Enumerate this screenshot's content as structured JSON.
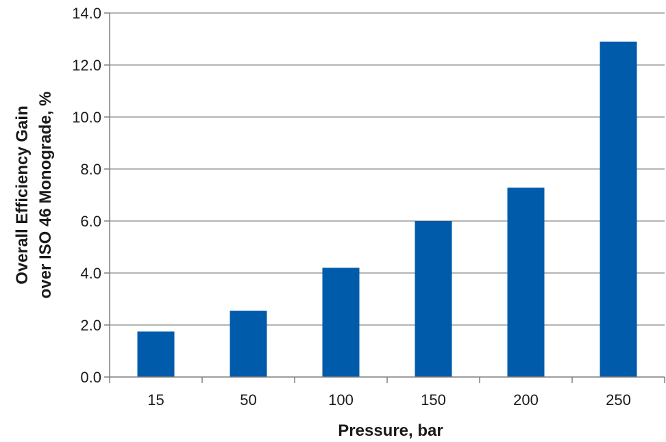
{
  "chart_data": {
    "type": "bar",
    "title": "",
    "xlabel": "Pressure, bar",
    "ylabel_lines": [
      "Overall Efficiency Gain",
      "over ISO 46 Monograde, %"
    ],
    "categories": [
      "15",
      "50",
      "100",
      "150",
      "200",
      "250"
    ],
    "values": [
      1.75,
      2.55,
      4.2,
      6.0,
      7.28,
      12.9
    ],
    "ylim": [
      0,
      14
    ],
    "yticks": [
      0,
      2,
      4,
      6,
      8,
      10,
      12,
      14
    ],
    "ytick_labels": [
      "0.0",
      "2.0",
      "4.0",
      "6.0",
      "8.0",
      "10.0",
      "12.0",
      "14.0"
    ],
    "grid": true,
    "legend": "none",
    "colors": {
      "bar": "#005baa",
      "grid": "#9c9c9c",
      "axis": "#7f7f7f"
    }
  }
}
